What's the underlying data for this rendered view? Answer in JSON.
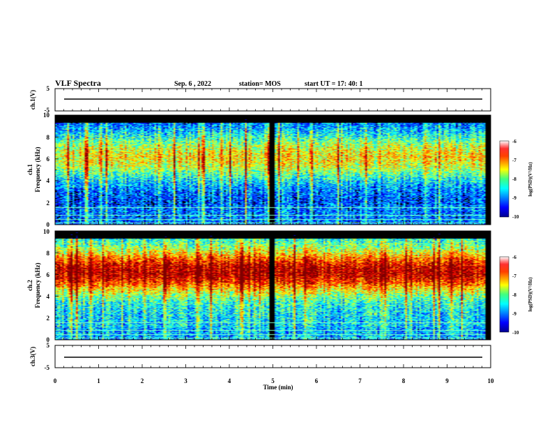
{
  "header": {
    "title": "VLF Spectra",
    "date": "Sep. 6  , 2022",
    "station": "station= MOS",
    "start": "start  UT  =    17: 40: 1"
  },
  "chart_data": [
    {
      "type": "line",
      "name": "ch1-voltage",
      "ylabel": "ch.1(V)",
      "ylim": [
        -5,
        5
      ],
      "yticks": [
        "5",
        "-5"
      ],
      "series": [
        {
          "level": 0
        }
      ]
    },
    {
      "type": "heatmap",
      "name": "ch1-spectrogram",
      "ylabel_lines": [
        "ch.1",
        "Frequency (kHz)"
      ],
      "ylim": [
        0,
        10
      ],
      "yticks": [
        "0",
        "2",
        "4",
        "6",
        "8",
        "10"
      ],
      "colorbar": {
        "label": "log(PSD)(V²/Hz)",
        "ticks": [
          "-6",
          "-7",
          "-8",
          "-9",
          "-10"
        ],
        "range": [
          -10,
          -6
        ]
      }
    },
    {
      "type": "heatmap",
      "name": "ch2-spectrogram",
      "ylabel_lines": [
        "ch.2",
        "Frequency (kHz)"
      ],
      "ylim": [
        0,
        10
      ],
      "yticks": [
        "0",
        "2",
        "4",
        "6",
        "8",
        "10"
      ],
      "colorbar": {
        "label": "log(PSD)(V²/Hz)",
        "ticks": [
          "-6",
          "-7",
          "-8",
          "-9",
          "-10"
        ],
        "range": [
          -10,
          -6
        ]
      }
    },
    {
      "type": "line",
      "name": "ch3-voltage",
      "ylabel": "ch.3(V)",
      "ylim": [
        -5,
        5
      ],
      "yticks": [
        "5",
        "-5"
      ],
      "series": [
        {
          "level": 0
        }
      ]
    }
  ],
  "xaxis": {
    "label": "Time  (min)",
    "range": [
      0,
      10
    ],
    "ticks": [
      "0",
      "1",
      "2",
      "3",
      "4",
      "5",
      "6",
      "7",
      "8",
      "9",
      "10"
    ]
  }
}
